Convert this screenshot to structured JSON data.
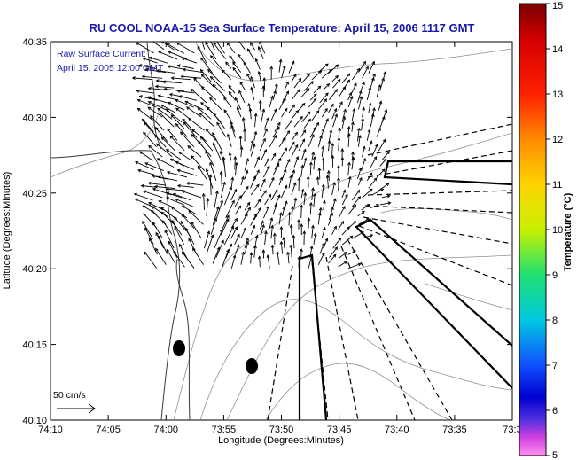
{
  "figure": {
    "title": "RU COOL  NOAA-15  Sea Surface Temperature:  April 15, 2006 1117 GMT",
    "legend_line1": "Raw Surface Current:",
    "legend_line2": "April 15, 2005 12:00 GMT",
    "xlabel": "Longitude (Degrees:Minutes)",
    "ylabel": "Latitude (Degrees:Minutes)",
    "scale_label": "50 cm/s"
  },
  "axes": {
    "x_ticks": [
      "74:10",
      "74:05",
      "74:00",
      "73:55",
      "73:50",
      "73:45",
      "73:40",
      "73:35",
      "73:3"
    ],
    "y_ticks": [
      "40:35",
      "40:30",
      "40:25",
      "40:20",
      "40:15",
      "40:10"
    ]
  },
  "colorbar": {
    "label": "Temperature (°C)",
    "ticks": [
      "15",
      "14",
      "13",
      "12",
      "11",
      "10",
      "9",
      "8",
      "7",
      "6",
      "5"
    ],
    "range": [
      5,
      15
    ]
  },
  "colors": {
    "title": "#1a1aa8",
    "contour": "#909090",
    "coast": "#3a3a3a"
  }
}
